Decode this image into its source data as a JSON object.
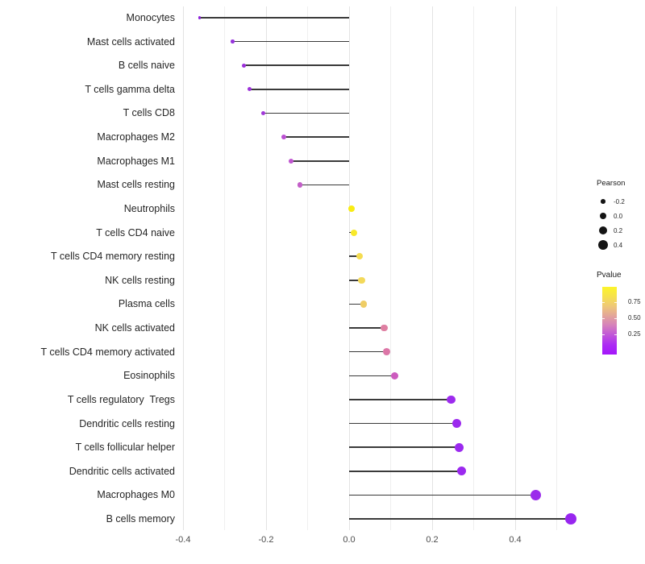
{
  "chart_data": {
    "type": "scatter",
    "variant": "lollipop-horizontal",
    "title": "",
    "xlabel": "",
    "ylabel": "",
    "background": "#FFFFFF",
    "stem_color": "#3A3A3A",
    "grid": "vertical-only",
    "categories": [
      "Monocytes",
      "Mast cells activated",
      "B cells naive",
      "T cells gamma delta",
      "T cells CD8",
      "Macrophages M2",
      "Macrophages M1",
      "Mast cells resting",
      "Neutrophils",
      "T cells CD4 naive",
      "T cells CD4 memory resting",
      "NK cells resting",
      "Plasma cells",
      "NK cells activated",
      "T cells CD4 memory activated",
      "Eosinophils",
      "T cells regulatory  Tregs",
      "Dendritic cells resting",
      "T cells follicular helper",
      "Dendritic cells activated",
      "Macrophages M0",
      "B cells memory"
    ],
    "series": [
      {
        "name": "Pearson",
        "values": [
          -0.36,
          -0.28,
          -0.253,
          -0.24,
          -0.207,
          -0.157,
          -0.14,
          -0.118,
          0.005,
          0.012,
          0.025,
          0.03,
          0.035,
          0.085,
          0.09,
          0.11,
          0.245,
          0.26,
          0.265,
          0.27,
          0.449,
          0.534
        ]
      }
    ],
    "point_colors": [
      "#8E24DC",
      "#9633DC",
      "#9C30DA",
      "#9D33DA",
      "#A138D8",
      "#BB50D2",
      "#BF55CF",
      "#C35FC8",
      "#F9EC13",
      "#F8E92A",
      "#F4DC51",
      "#F3D95A",
      "#EFCD65",
      "#DF7FA2",
      "#DC76A7",
      "#CC5BBE",
      "#9D2BEE",
      "#9C2AEE",
      "#9B29EF",
      "#9B29EF",
      "#9B2BEB",
      "#9826EF"
    ],
    "x_axis": {
      "min": -0.41,
      "max": 0.56,
      "major_ticks": [
        -0.4,
        -0.2,
        0.0,
        0.2,
        0.4
      ],
      "tick_labels": [
        "-0.4",
        "-0.2",
        "0.0",
        "0.2",
        "0.4"
      ],
      "minor_step": 0.1,
      "gridline_values": [
        -0.4,
        -0.3,
        -0.2,
        -0.1,
        0.0,
        0.1,
        0.2,
        0.3,
        0.4,
        0.5
      ]
    },
    "legend_position": "right"
  },
  "legend": {
    "pearson": {
      "title": "Pearson",
      "items": [
        {
          "label": "-0.2",
          "value": -0.2
        },
        {
          "label": "0.0",
          "value": 0.0
        },
        {
          "label": "0.2",
          "value": 0.2
        },
        {
          "label": "0.4",
          "value": 0.4
        }
      ],
      "dot_color": "#141414"
    },
    "pvalue": {
      "title": "Pvalue",
      "tick_labels": [
        "0.75",
        "0.50",
        "0.25"
      ],
      "gradient_top_to_bottom": [
        "#FCF42A",
        "#F6E14D",
        "#EFC878",
        "#E3A59A",
        "#D580BC",
        "#C055D9",
        "#AC2BF3",
        "#A416FB"
      ]
    }
  }
}
